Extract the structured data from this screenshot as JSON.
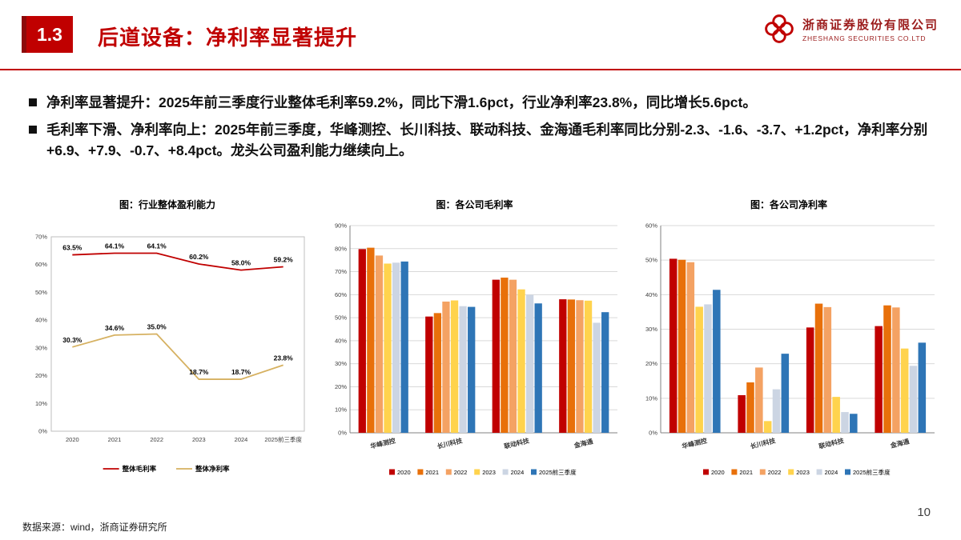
{
  "header": {
    "section_number": "1.3",
    "title": "后道设备：净利率显著提升",
    "logo_name": "浙商证券股份有限公司",
    "logo_name_en": "ZHESHANG SECURITIES CO.LTD"
  },
  "bullets": [
    "净利率显著提升：2025年前三季度行业整体毛利率59.2%，同比下滑1.6pct，行业净利率23.8%，同比增长5.6pct。",
    "毛利率下滑、净利率向上：2025年前三季度，华峰测控、长川科技、联动科技、金海通毛利率同比分别-2.3、-1.6、-3.7、+1.2pct，净利率分别+6.9、+7.9、-0.7、+8.4pct。龙头公司盈利能力继续向上。"
  ],
  "footer": {
    "source": "数据来源：wind，浙商证券研究所",
    "page_number": "10"
  },
  "colors": {
    "accent_red": "#c00000",
    "grid": "#d9d9d9",
    "axis": "#808080"
  },
  "chart_data": [
    {
      "type": "line",
      "title": "图：行业整体盈利能力",
      "categories": [
        "2020",
        "2021",
        "2022",
        "2023",
        "2024",
        "2025前三季度"
      ],
      "series": [
        {
          "name": "整体毛利率",
          "color": "#c00000",
          "values": [
            63.5,
            64.1,
            64.1,
            60.2,
            58.0,
            59.2
          ]
        },
        {
          "name": "整体净利率",
          "color": "#d6b161",
          "values": [
            30.3,
            34.6,
            35.0,
            18.7,
            18.7,
            23.8
          ]
        }
      ],
      "ylim": [
        0,
        70
      ],
      "ytick_step": 10,
      "grid": false,
      "legend_position": "bottom",
      "data_labels": true
    },
    {
      "type": "bar",
      "title": "图：各公司毛利率",
      "categories": [
        "华峰测控",
        "长川科技",
        "联动科技",
        "金海通"
      ],
      "series": [
        {
          "name": "2020",
          "color": "#c00000",
          "values": [
            79.8,
            50.5,
            66.5,
            58.0
          ]
        },
        {
          "name": "2021",
          "color": "#e8700a",
          "values": [
            80.4,
            52.0,
            67.4,
            57.9
          ]
        },
        {
          "name": "2022",
          "color": "#f4a263",
          "values": [
            77.0,
            57.0,
            66.5,
            57.6
          ]
        },
        {
          "name": "2023",
          "color": "#ffd34d",
          "values": [
            73.5,
            57.5,
            62.3,
            57.4
          ]
        },
        {
          "name": "2024",
          "color": "#ccd5e3",
          "values": [
            73.9,
            55.0,
            59.9,
            47.8
          ]
        },
        {
          "name": "2025前三季度",
          "color": "#2e75b6",
          "values": [
            74.4,
            54.7,
            56.2,
            52.4
          ]
        }
      ],
      "ylim": [
        0,
        90
      ],
      "ytick_step": 10,
      "grid": true,
      "legend_position": "bottom",
      "data_labels": false
    },
    {
      "type": "bar",
      "title": "图：各公司净利率",
      "categories": [
        "华峰测控",
        "长川科技",
        "联动科技",
        "金海通"
      ],
      "series": [
        {
          "name": "2020",
          "color": "#c00000",
          "values": [
            50.4,
            10.9,
            30.5,
            30.9
          ]
        },
        {
          "name": "2021",
          "color": "#e8700a",
          "values": [
            50.1,
            14.6,
            37.4,
            36.9
          ]
        },
        {
          "name": "2022",
          "color": "#f4a263",
          "values": [
            49.4,
            18.9,
            36.4,
            36.3
          ]
        },
        {
          "name": "2023",
          "color": "#ffd34d",
          "values": [
            36.5,
            3.4,
            10.4,
            24.4
          ]
        },
        {
          "name": "2024",
          "color": "#ccd5e3",
          "values": [
            37.2,
            12.6,
            6.0,
            19.4
          ]
        },
        {
          "name": "2025前三季度",
          "color": "#2e75b6",
          "values": [
            41.4,
            22.9,
            5.5,
            26.1
          ]
        }
      ],
      "ylim": [
        0,
        60
      ],
      "ytick_step": 10,
      "grid": true,
      "legend_position": "bottom",
      "data_labels": false
    }
  ]
}
